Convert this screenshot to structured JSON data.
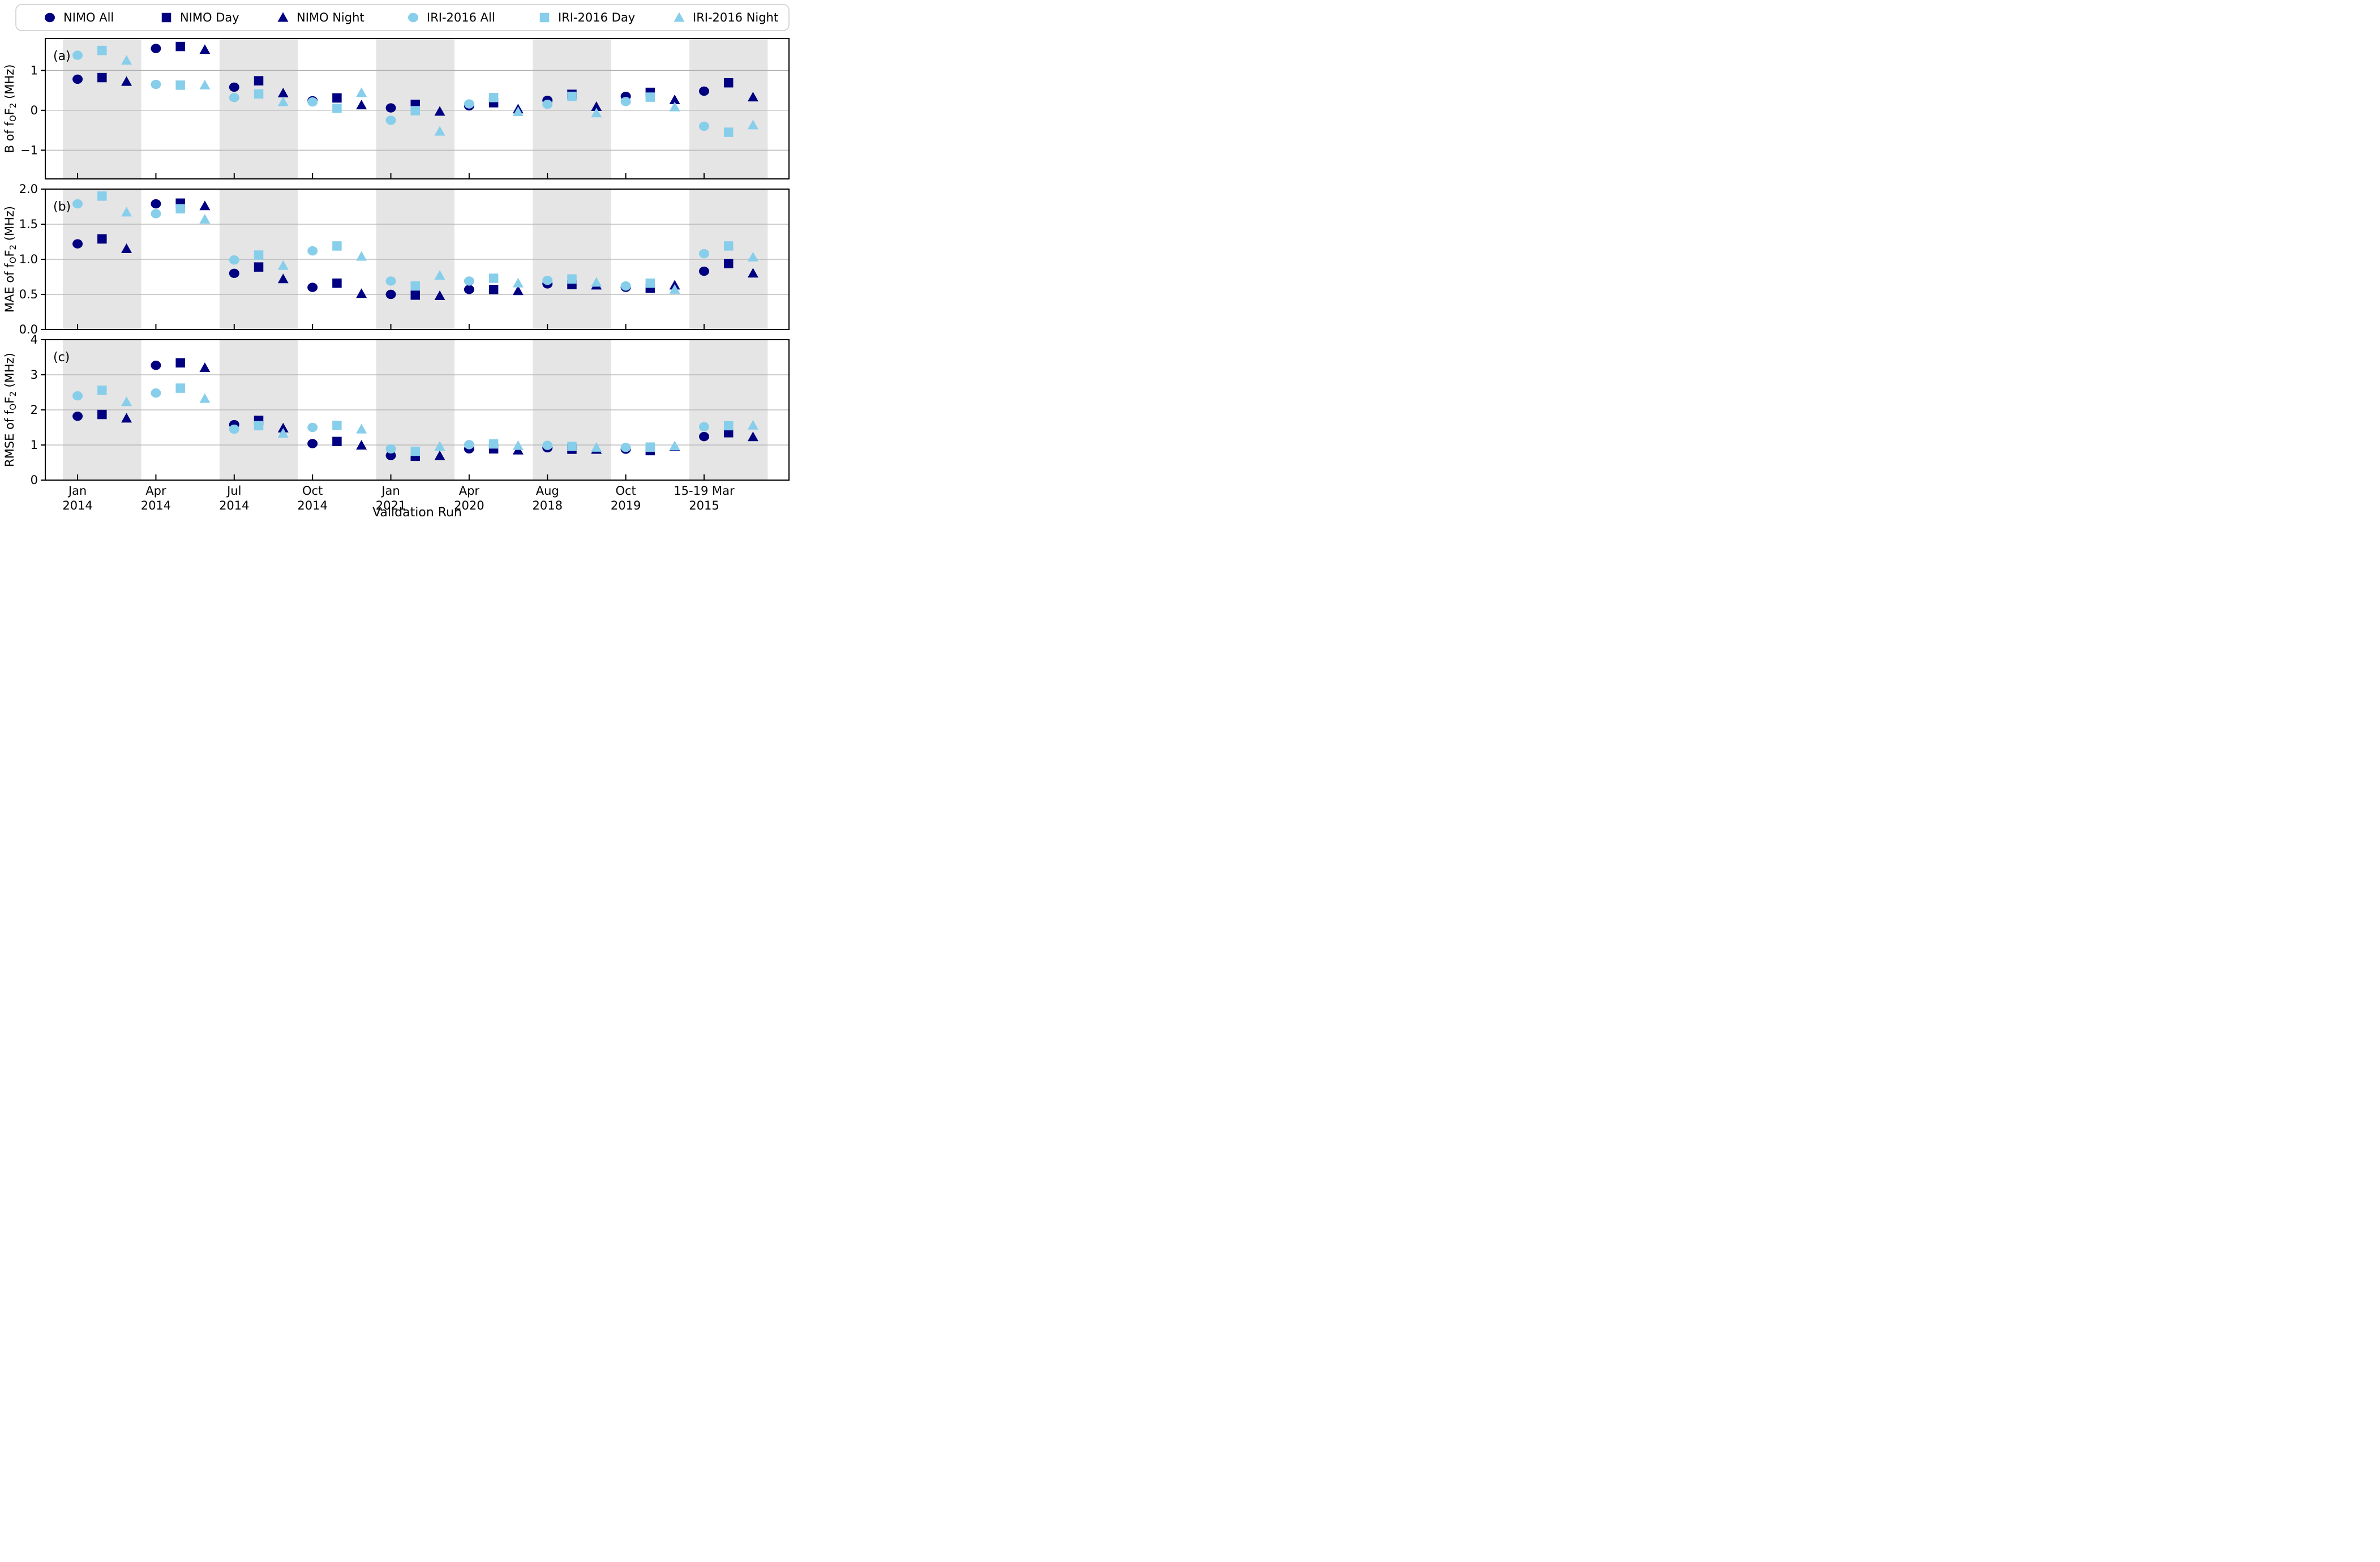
{
  "figure": {
    "xlabel": "Validation Run",
    "legend_border_color": "#cccccc",
    "background_color": "#ffffff"
  },
  "chart_data": {
    "type": "scatter",
    "title": "",
    "xlabel": "Validation Run",
    "categories": [
      "Jan 2014",
      "Apr 2014",
      "Jul 2014",
      "Oct 2014",
      "Jan 2021",
      "Apr 2020",
      "Aug 2018",
      "Oct 2019",
      "15-19 Mar 2015"
    ],
    "x_tick_labels": [
      [
        "Jan",
        "2014"
      ],
      [
        "Apr",
        "2014"
      ],
      [
        "Jul",
        "2014"
      ],
      [
        "Oct",
        "2014"
      ],
      [
        "Jan",
        "2021"
      ],
      [
        "Apr",
        "2020"
      ],
      [
        "Aug",
        "2018"
      ],
      [
        "Oct",
        "2019"
      ],
      [
        "15-19 Mar",
        "2015"
      ]
    ],
    "sub_positions": [
      "All",
      "Day",
      "Night"
    ],
    "layout": {
      "xlim_units": [
        -1.32,
        29.07
      ],
      "group_spacing_units": 3.2,
      "sub_offsets": [
        0,
        1,
        2
      ],
      "shaded_groups": [
        0,
        2,
        4,
        6,
        8
      ],
      "band_color": "#e5e5e5",
      "grid_color": "#b0b0b0",
      "grid_on": true,
      "legend_position": "top"
    },
    "panels": [
      {
        "key": "b",
        "letter": "(a)",
        "ylabel": "B of foF2 (MHz)",
        "ylabel_parts": [
          {
            "t": "B of f"
          },
          {
            "t": "O",
            "sub": true
          },
          {
            "t": "F"
          },
          {
            "t": "2",
            "sub": true
          },
          {
            "t": " (MHz)"
          }
        ],
        "ylim": [
          -1.72,
          1.8
        ],
        "yticks": [
          {
            "v": 1,
            "label": "1"
          },
          {
            "v": 0,
            "label": "0"
          },
          {
            "v": -1,
            "label": "−1"
          }
        ]
      },
      {
        "key": "mae",
        "letter": "(b)",
        "ylabel": "MAE of foF2 (MHz)",
        "ylabel_parts": [
          {
            "t": "MAE of f"
          },
          {
            "t": "O",
            "sub": true
          },
          {
            "t": "F"
          },
          {
            "t": "2",
            "sub": true
          },
          {
            "t": " (MHz)"
          }
        ],
        "ylim": [
          0,
          2
        ],
        "yticks": [
          {
            "v": 2,
            "label": "2.0"
          },
          {
            "v": 1.5,
            "label": "1.5"
          },
          {
            "v": 1,
            "label": "1.0"
          },
          {
            "v": 0.5,
            "label": "0.5"
          },
          {
            "v": 0,
            "label": "0.0"
          }
        ]
      },
      {
        "key": "rmse",
        "letter": "(c)",
        "ylabel": "RMSE of foF2 (MHz)",
        "ylabel_parts": [
          {
            "t": "RMSE of f"
          },
          {
            "t": "O",
            "sub": true
          },
          {
            "t": "F"
          },
          {
            "t": "2",
            "sub": true
          },
          {
            "t": " (MHz)"
          }
        ],
        "ylim": [
          0,
          4
        ],
        "yticks": [
          {
            "v": 4,
            "label": "4"
          },
          {
            "v": 3,
            "label": "3"
          },
          {
            "v": 2,
            "label": "2"
          },
          {
            "v": 1,
            "label": "1"
          },
          {
            "v": 0,
            "label": "0"
          }
        ]
      }
    ],
    "series": [
      {
        "name": "NIMO All",
        "model": "NIMO",
        "window": "All",
        "marker": "circle",
        "color": "#000080",
        "sub": 0,
        "values": {
          "b": [
            0.78,
            1.55,
            0.58,
            0.24,
            0.06,
            0.11,
            0.25,
            0.35,
            0.48
          ],
          "mae": [
            1.22,
            1.79,
            0.8,
            0.6,
            0.5,
            0.57,
            0.65,
            0.6,
            0.83
          ],
          "rmse": [
            1.82,
            3.27,
            1.58,
            1.04,
            0.7,
            0.89,
            0.92,
            0.88,
            1.24
          ]
        }
      },
      {
        "name": "NIMO Day",
        "model": "NIMO",
        "window": "Day",
        "marker": "square",
        "color": "#000080",
        "sub": 1,
        "values": {
          "b": [
            0.82,
            1.6,
            0.74,
            0.31,
            0.15,
            0.19,
            0.4,
            0.45,
            0.69
          ],
          "mae": [
            1.29,
            1.8,
            0.89,
            0.66,
            0.49,
            0.57,
            0.64,
            0.59,
            0.94
          ],
          "rmse": [
            1.87,
            3.34,
            1.7,
            1.1,
            0.68,
            0.89,
            0.88,
            0.84,
            1.35
          ]
        }
      },
      {
        "name": "NIMO Night",
        "model": "NIMO",
        "window": "Night",
        "marker": "triangle",
        "color": "#000080",
        "sub": 2,
        "values": {
          "b": [
            0.72,
            1.52,
            0.43,
            0.13,
            -0.03,
            0.03,
            0.09,
            0.26,
            0.33
          ],
          "mae": [
            1.15,
            1.76,
            0.72,
            0.51,
            0.48,
            0.55,
            0.63,
            0.63,
            0.8
          ],
          "rmse": [
            1.76,
            3.2,
            1.48,
            0.99,
            0.69,
            0.85,
            0.87,
            0.95,
            1.23
          ]
        }
      },
      {
        "name": "IRI-2016 All",
        "model": "IRI-2016",
        "window": "All",
        "marker": "circle",
        "color": "#87ceeb",
        "sub": 0,
        "values": {
          "b": [
            1.38,
            0.65,
            0.32,
            0.21,
            -0.25,
            0.16,
            0.15,
            0.22,
            -0.4
          ],
          "mae": [
            1.79,
            1.65,
            0.99,
            1.12,
            0.69,
            0.69,
            0.7,
            0.62,
            1.08
          ],
          "rmse": [
            2.4,
            2.48,
            1.45,
            1.5,
            0.89,
            1.01,
            0.99,
            0.93,
            1.52
          ]
        }
      },
      {
        "name": "IRI-2016 Day",
        "model": "IRI-2016",
        "window": "Day",
        "marker": "square",
        "color": "#87ceeb",
        "sub": 1,
        "values": {
          "b": [
            1.5,
            0.63,
            0.41,
            0.05,
            -0.01,
            0.32,
            0.35,
            0.33,
            -0.55
          ],
          "mae": [
            1.9,
            1.72,
            1.06,
            1.19,
            0.62,
            0.73,
            0.72,
            0.66,
            1.19
          ],
          "rmse": [
            2.56,
            2.62,
            1.55,
            1.56,
            0.82,
            1.03,
            0.96,
            0.94,
            1.55
          ]
        }
      },
      {
        "name": "IRI-2016 Night",
        "model": "IRI-2016",
        "window": "Night",
        "marker": "triangle",
        "color": "#87ceeb",
        "sub": 2,
        "values": {
          "b": [
            1.25,
            0.63,
            0.21,
            0.44,
            -0.53,
            -0.04,
            -0.07,
            0.08,
            -0.37
          ],
          "mae": [
            1.67,
            1.57,
            0.91,
            1.04,
            0.77,
            0.66,
            0.67,
            0.57,
            1.03
          ],
          "rmse": [
            2.23,
            2.32,
            1.33,
            1.45,
            0.96,
            0.98,
            0.93,
            0.97,
            1.56
          ]
        }
      }
    ]
  }
}
